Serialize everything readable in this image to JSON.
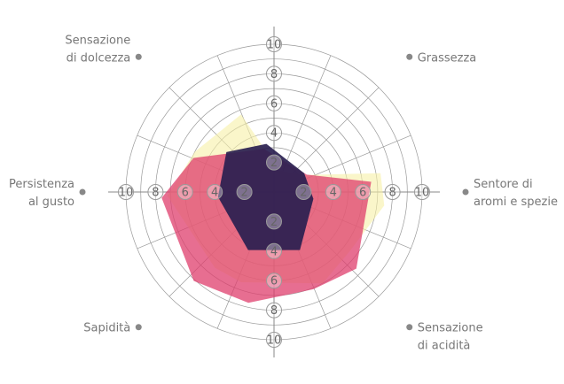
{
  "chart_data": {
    "type": "radar",
    "axes": [
      {
        "label": [
          "Grassezza"
        ],
        "angle_deg": -45
      },
      {
        "label": [
          "Sentore di",
          "aromi e spezie"
        ],
        "angle_deg": 0
      },
      {
        "label": [
          "Sensazione",
          "di acidità"
        ],
        "angle_deg": 45
      },
      {
        "label": [
          "Sapidità"
        ],
        "angle_deg": 135
      },
      {
        "label": [
          "Persistenza",
          "al gusto"
        ],
        "angle_deg": 180
      },
      {
        "label": [
          "Sensazione",
          "di dolcezza"
        ],
        "angle_deg": -135
      }
    ],
    "scale_axes": [
      {
        "angle_deg": -90,
        "ticks": [
          2,
          4,
          6,
          8,
          10
        ]
      },
      {
        "angle_deg": 0,
        "ticks": [
          2,
          4,
          6,
          8,
          10
        ]
      },
      {
        "angle_deg": 90,
        "ticks": [
          2,
          4,
          6,
          8,
          10
        ]
      },
      {
        "angle_deg": 180,
        "ticks": [
          2,
          4,
          6,
          8,
          10
        ]
      }
    ],
    "scale_max": 10,
    "grid_rings": [
      1,
      2,
      3,
      4,
      5,
      6,
      7,
      8,
      9,
      10
    ],
    "spoke_count": 16,
    "series": [
      {
        "color": "#f7f0a6",
        "opacity": 0.6,
        "points": [
          {
            "angle_deg": -113,
            "value": 5.7
          },
          {
            "angle_deg": -76,
            "value": 1.5
          },
          {
            "angle_deg": -30,
            "value": 2.3
          },
          {
            "angle_deg": -10,
            "value": 7.3
          },
          {
            "angle_deg": 7,
            "value": 7.5
          },
          {
            "angle_deg": 38,
            "value": 6.5
          },
          {
            "angle_deg": 62,
            "value": 7.0
          },
          {
            "angle_deg": 110,
            "value": 6.5
          },
          {
            "angle_deg": 128,
            "value": 6.5
          },
          {
            "angle_deg": 178,
            "value": 7.2
          },
          {
            "angle_deg": -153,
            "value": 6.0
          }
        ]
      },
      {
        "color": "#df3d6c",
        "opacity": 0.75,
        "points": [
          {
            "angle_deg": -103,
            "value": 3.0
          },
          {
            "angle_deg": -28,
            "value": 2.5
          },
          {
            "angle_deg": -6,
            "value": 6.6
          },
          {
            "angle_deg": 43,
            "value": 7.6
          },
          {
            "angle_deg": 68,
            "value": 7.1
          },
          {
            "angle_deg": 103,
            "value": 7.7
          },
          {
            "angle_deg": 132,
            "value": 8.1
          },
          {
            "angle_deg": 177,
            "value": 7.6
          },
          {
            "angle_deg": -157,
            "value": 5.9
          }
        ]
      },
      {
        "color": "#2a2050",
        "opacity": 0.92,
        "points": [
          {
            "angle_deg": -99,
            "value": 3.3
          },
          {
            "angle_deg": -32,
            "value": 2.4
          },
          {
            "angle_deg": 10,
            "value": 2.7
          },
          {
            "angle_deg": 66,
            "value": 4.3
          },
          {
            "angle_deg": 114,
            "value": 4.3
          },
          {
            "angle_deg": 175,
            "value": 3.8
          },
          {
            "angle_deg": -140,
            "value": 4.2
          }
        ]
      }
    ]
  }
}
